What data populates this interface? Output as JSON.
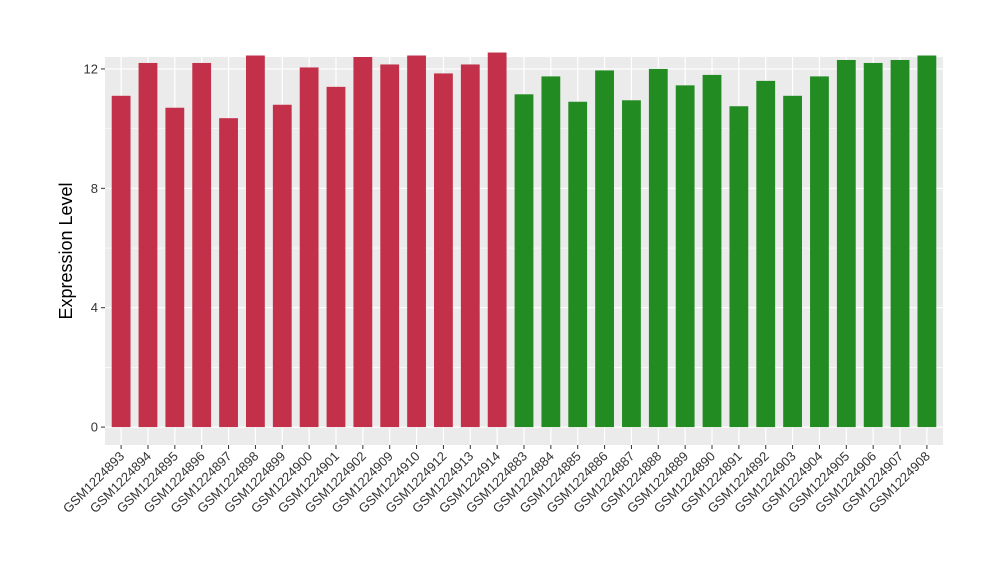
{
  "chart_data": {
    "type": "bar",
    "ylabel": "Expression Level",
    "xlabel": "",
    "ylim": [
      -0.6,
      12.4
    ],
    "yticks": [
      0,
      4,
      8,
      12
    ],
    "grid": true,
    "legend": "none",
    "colors": {
      "group1": "#c3304a",
      "group2": "#228b22",
      "panel": "#ebebeb",
      "grid": "#ffffff"
    },
    "categories": [
      "GSM1224893",
      "GSM1224894",
      "GSM1224895",
      "GSM1224896",
      "GSM1224897",
      "GSM1224898",
      "GSM1224899",
      "GSM1224900",
      "GSM1224901",
      "GSM1224902",
      "GSM1224909",
      "GSM1224910",
      "GSM1224912",
      "GSM1224913",
      "GSM1224914",
      "GSM1224883",
      "GSM1224884",
      "GSM1224885",
      "GSM1224886",
      "GSM1224887",
      "GSM1224888",
      "GSM1224889",
      "GSM1224890",
      "GSM1224891",
      "GSM1224892",
      "GSM1224903",
      "GSM1224904",
      "GSM1224905",
      "GSM1224906",
      "GSM1224907",
      "GSM1224908"
    ],
    "values": [
      11.1,
      12.2,
      10.7,
      12.2,
      10.35,
      12.45,
      10.8,
      12.05,
      11.4,
      12.4,
      12.15,
      12.45,
      11.85,
      12.15,
      12.55,
      11.15,
      11.75,
      10.9,
      11.95,
      10.95,
      12.0,
      11.45,
      11.8,
      10.75,
      11.6,
      11.1,
      11.75,
      12.3,
      12.2,
      12.3,
      12.45
    ],
    "groups": [
      1,
      1,
      1,
      1,
      1,
      1,
      1,
      1,
      1,
      1,
      1,
      1,
      1,
      1,
      1,
      2,
      2,
      2,
      2,
      2,
      2,
      2,
      2,
      2,
      2,
      2,
      2,
      2,
      2,
      2,
      2
    ]
  }
}
